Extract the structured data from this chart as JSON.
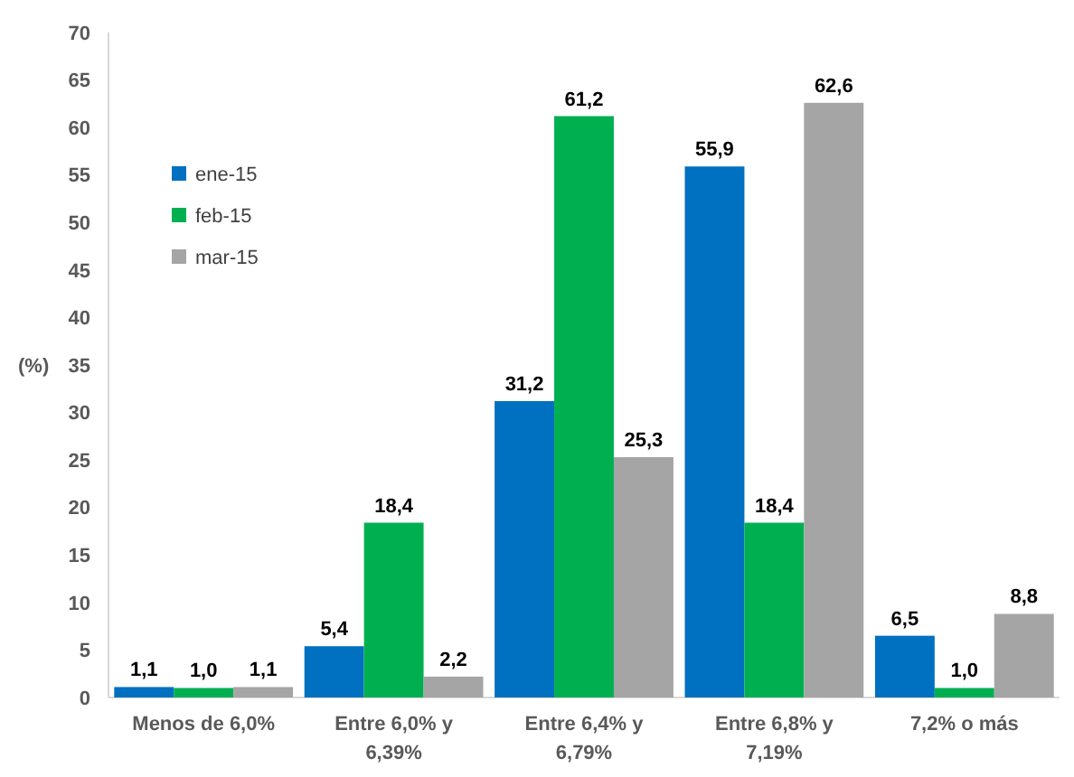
{
  "chart_data": {
    "type": "bar",
    "ylabel": "(%)",
    "categories": [
      "Menos de 6,0%",
      "Entre 6,0% y 6,39%",
      "Entre 6,4% y 6,79%",
      "Entre 6,8% y 7,19%",
      "7,2% o más"
    ],
    "series": [
      {
        "name": "ene-15",
        "color": "#0070c0",
        "values": [
          1.1,
          5.4,
          31.2,
          55.9,
          6.5
        ],
        "value_labels": [
          "1,1",
          "5,4",
          "31,2",
          "55,9",
          "6,5"
        ]
      },
      {
        "name": "feb-15",
        "color": "#00b050",
        "values": [
          1.0,
          18.4,
          61.2,
          18.4,
          1.0
        ],
        "value_labels": [
          "1,0",
          "18,4",
          "61,2",
          "18,4",
          "1,0"
        ]
      },
      {
        "name": "mar-15",
        "color": "#a5a5a5",
        "values": [
          1.1,
          2.2,
          25.3,
          62.6,
          8.8
        ],
        "value_labels": [
          "1,1",
          "2,2",
          "25,3",
          "62,6",
          "8,8"
        ]
      }
    ],
    "ylim": [
      0,
      70
    ],
    "yticks": [
      0,
      5,
      10,
      15,
      20,
      25,
      30,
      35,
      40,
      45,
      50,
      55,
      60,
      65,
      70
    ],
    "legend": "top left",
    "grid": false
  }
}
